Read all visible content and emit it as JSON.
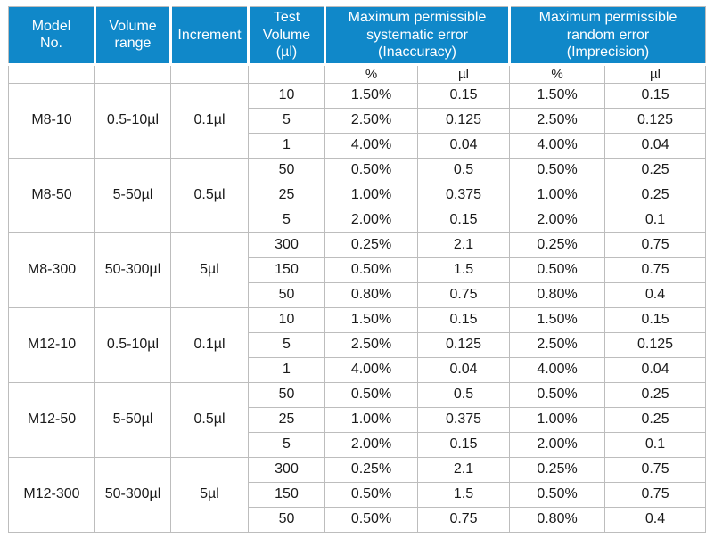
{
  "colors": {
    "header_bg": "#1088C9",
    "header_text": "#FFFFFF",
    "grid_line": "#BDBDBD",
    "body_text": "#1A1A1A"
  },
  "table": {
    "header": {
      "model_no": "Model\nNo.",
      "volume_range": "Volume\nrange",
      "increment": "Increment",
      "test_volume": "Test\nVolume\n(µl)",
      "systematic_error": "Maximum permissible\nsystematic error\n(Inaccuracy)",
      "random_error": "Maximum permissible\nrandom error\n(Imprecision)",
      "sub": {
        "sys_pct": "%",
        "sys_ul": "µl",
        "rand_pct": "%",
        "rand_ul": "µl"
      }
    },
    "groups": [
      {
        "model": "M8-10",
        "range": "0.5-10µl",
        "increment": "0.1µl",
        "rows": [
          [
            "10",
            "1.50%",
            "0.15",
            "1.50%",
            "0.15"
          ],
          [
            "5",
            "2.50%",
            "0.125",
            "2.50%",
            "0.125"
          ],
          [
            "1",
            "4.00%",
            "0.04",
            "4.00%",
            "0.04"
          ]
        ]
      },
      {
        "model": "M8-50",
        "range": "5-50µl",
        "increment": "0.5µl",
        "rows": [
          [
            "50",
            "0.50%",
            "0.5",
            "0.50%",
            "0.25"
          ],
          [
            "25",
            "1.00%",
            "0.375",
            "1.00%",
            "0.25"
          ],
          [
            "5",
            "2.00%",
            "0.15",
            "2.00%",
            "0.1"
          ]
        ]
      },
      {
        "model": "M8-300",
        "range": "50-300µl",
        "increment": "5µl",
        "rows": [
          [
            "300",
            "0.25%",
            "2.1",
            "0.25%",
            "0.75"
          ],
          [
            "150",
            "0.50%",
            "1.5",
            "0.50%",
            "0.75"
          ],
          [
            "50",
            "0.80%",
            "0.75",
            "0.80%",
            "0.4"
          ]
        ]
      },
      {
        "model": "M12-10",
        "range": "0.5-10µl",
        "increment": "0.1µl",
        "rows": [
          [
            "10",
            "1.50%",
            "0.15",
            "1.50%",
            "0.15"
          ],
          [
            "5",
            "2.50%",
            "0.125",
            "2.50%",
            "0.125"
          ],
          [
            "1",
            "4.00%",
            "0.04",
            "4.00%",
            "0.04"
          ]
        ]
      },
      {
        "model": "M12-50",
        "range": "5-50µl",
        "increment": "0.5µl",
        "rows": [
          [
            "50",
            "0.50%",
            "0.5",
            "0.50%",
            "0.25"
          ],
          [
            "25",
            "1.00%",
            "0.375",
            "1.00%",
            "0.25"
          ],
          [
            "5",
            "2.00%",
            "0.15",
            "2.00%",
            "0.1"
          ]
        ]
      },
      {
        "model": "M12-300",
        "range": "50-300µl",
        "increment": "5µl",
        "rows": [
          [
            "300",
            "0.25%",
            "2.1",
            "0.25%",
            "0.75"
          ],
          [
            "150",
            "0.50%",
            "1.5",
            "0.50%",
            "0.75"
          ],
          [
            "50",
            "0.50%",
            "0.75",
            "0.80%",
            "0.4"
          ]
        ]
      }
    ]
  }
}
